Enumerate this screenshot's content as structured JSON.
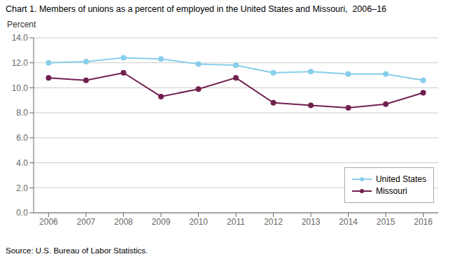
{
  "chart_data": {
    "type": "line",
    "title": "Chart 1. Members of unions as a percent of employed in the United States and Missouri,  2006–16",
    "y_label": "Percent",
    "source": "Source: U.S. Bureau of Labor Statistics.",
    "x": [
      2006,
      2007,
      2008,
      2009,
      2010,
      2011,
      2012,
      2013,
      2014,
      2015,
      2016
    ],
    "series": [
      {
        "name": "United States",
        "color": "#87CEEB",
        "marker": "circle",
        "values": [
          12.0,
          12.1,
          12.4,
          12.3,
          11.9,
          11.8,
          11.2,
          11.3,
          11.1,
          11.1,
          10.6
        ]
      },
      {
        "name": "Missouri",
        "color": "#722050",
        "marker": "circle",
        "values": [
          10.8,
          10.6,
          11.2,
          9.3,
          9.9,
          10.8,
          8.8,
          8.6,
          8.4,
          8.7,
          9.6
        ]
      }
    ],
    "xlim": [
      2005.6,
      2016.4
    ],
    "xticks": [
      2006,
      2007,
      2008,
      2009,
      2010,
      2011,
      2012,
      2013,
      2014,
      2015,
      2016
    ],
    "ylim": [
      0.0,
      14.0
    ],
    "yticks": [
      {
        "value": 0,
        "label": "0.0"
      },
      {
        "value": 2,
        "label": "2.0"
      },
      {
        "value": 4,
        "label": "4.0"
      },
      {
        "value": 6,
        "label": "6.0"
      },
      {
        "value": 8,
        "label": "8.0"
      },
      {
        "value": 10,
        "label": "10.0"
      },
      {
        "value": 12,
        "label": "12.0"
      },
      {
        "value": 14,
        "label": "14.0"
      }
    ],
    "grid": "y",
    "legend": "lower right"
  }
}
